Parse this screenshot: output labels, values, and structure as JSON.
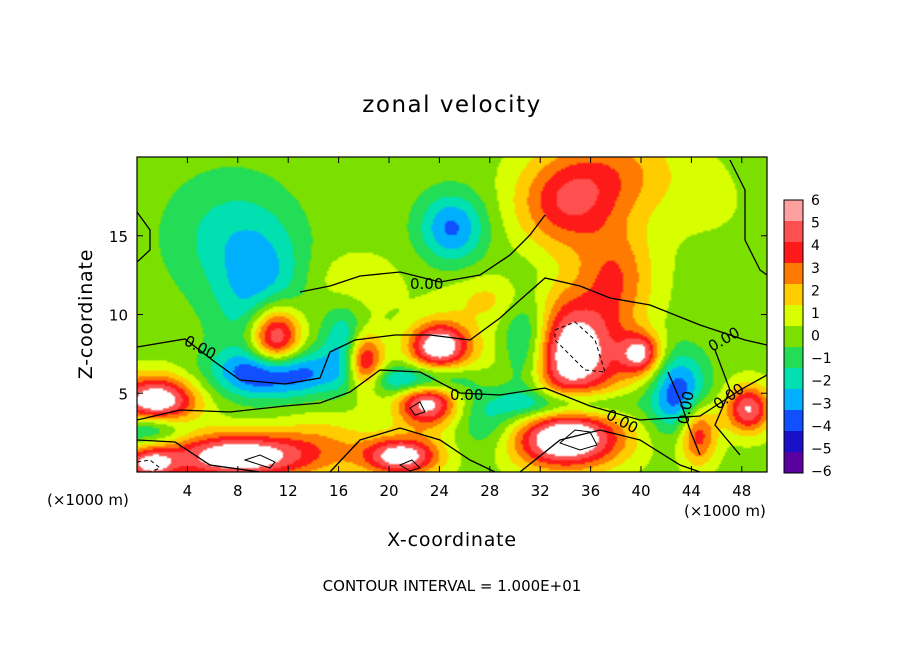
{
  "chart_data": {
    "type": "heatmap",
    "title": "zonal velocity",
    "xlabel": "X-coordinate",
    "ylabel": "Z-coordinate",
    "x_unit": "(×1000 m)",
    "x_unit_right": "(×1000 m)",
    "xlim": [
      0,
      50
    ],
    "ylim": [
      0,
      20
    ],
    "x_ticks": [
      "4",
      "8",
      "12",
      "16",
      "20",
      "24",
      "28",
      "32",
      "36",
      "40",
      "44",
      "48"
    ],
    "y_ticks": [
      "5",
      "10",
      "15"
    ],
    "colorbar_ticks": [
      "6",
      "5",
      "4",
      "3",
      "2",
      "1",
      "0",
      "−1",
      "−2",
      "−3",
      "−4",
      "−5",
      "−6"
    ],
    "colorbar_colors": [
      "#ffa0a0",
      "#ff5050",
      "#ff1a1a",
      "#ff7a00",
      "#ffcc00",
      "#d8ff00",
      "#7be000",
      "#22dd55",
      "#00e0b0",
      "#00b0ff",
      "#1050ff",
      "#1a10c8",
      "#5a00a0"
    ],
    "contour_labels": [
      "0.00",
      "0.00",
      "0.00",
      "0.00",
      "0.00",
      "0.00",
      "0.00",
      "0.00"
    ],
    "footer": "CONTOUR INTERVAL = 1.000E+01",
    "features": [
      {
        "x": 25,
        "z": 15.5,
        "v": -3.8,
        "r": 2.6,
        "rz": 2.2
      },
      {
        "x": 10,
        "z": 11,
        "v": -3.0,
        "r": 3.5,
        "rz": 4.5
      },
      {
        "x": 7,
        "z": 15,
        "v": -1.8,
        "r": 5,
        "rz": 4
      },
      {
        "x": 34,
        "z": 17,
        "v": 3.8,
        "r": 4,
        "rz": 3
      },
      {
        "x": 38,
        "z": 12.5,
        "v": 3,
        "r": 3,
        "rz": 3
      },
      {
        "x": 38,
        "z": 19,
        "v": 2.5,
        "r": 5,
        "rz": 3
      },
      {
        "x": 46,
        "z": 17,
        "v": 0.4,
        "r": 5,
        "rz": 4
      },
      {
        "x": 11,
        "z": 8.5,
        "v": 7.5,
        "r": 2.1,
        "rz": 2.2
      },
      {
        "x": 11,
        "z": 6.3,
        "v": -5.5,
        "r": 4.5,
        "rz": 1.5
      },
      {
        "x": 16.5,
        "z": 8,
        "v": -3,
        "r": 1.6,
        "rz": 2.5
      },
      {
        "x": 18,
        "z": 7,
        "v": 5.5,
        "r": 1.5,
        "rz": 1.8
      },
      {
        "x": 24,
        "z": 8,
        "v": 7,
        "r": 2.4,
        "rz": 1.5
      },
      {
        "x": 23,
        "z": 4.5,
        "v": 6.5,
        "r": 2.4,
        "rz": 1.6
      },
      {
        "x": 22.5,
        "z": 5.8,
        "v": -5,
        "r": 3.5,
        "rz": 1
      },
      {
        "x": 21,
        "z": 1,
        "v": 6.5,
        "r": 3,
        "rz": 1.2
      },
      {
        "x": 34,
        "z": 7.5,
        "v": 7.5,
        "r": 4.5,
        "rz": 3.5
      },
      {
        "x": 31,
        "z": 8,
        "v": -5.5,
        "r": 2.2,
        "rz": 3.5
      },
      {
        "x": 34,
        "z": 2,
        "v": 7,
        "r": 4.5,
        "rz": 1.8
      },
      {
        "x": 34,
        "z": 4.3,
        "v": -4,
        "r": 5,
        "rz": 1
      },
      {
        "x": 40,
        "z": 7.5,
        "v": 5,
        "r": 1.6,
        "rz": 1.3
      },
      {
        "x": 43,
        "z": 5,
        "v": -4.5,
        "r": 2.2,
        "rz": 2.5
      },
      {
        "x": 44.5,
        "z": 2.5,
        "v": 4.5,
        "r": 1.5,
        "rz": 2
      },
      {
        "x": 48.5,
        "z": 4,
        "v": 5.5,
        "r": 1.8,
        "rz": 1.5
      },
      {
        "x": 1.5,
        "z": 4.5,
        "v": 7,
        "r": 3.2,
        "rz": 1.6
      },
      {
        "x": 1,
        "z": 2.8,
        "v": -3.5,
        "r": 3,
        "rz": 1
      },
      {
        "x": 8,
        "z": 1,
        "v": 7,
        "r": 6,
        "rz": 1.5
      },
      {
        "x": 1,
        "z": 0.5,
        "v": 5,
        "r": 2,
        "rz": 1
      },
      {
        "x": 15,
        "z": 2,
        "v": 1.5,
        "r": 4,
        "rz": 2
      },
      {
        "x": 28,
        "z": 3,
        "v": -2,
        "r": 2.5,
        "rz": 2
      },
      {
        "x": 17,
        "z": 12,
        "v": 1.2,
        "r": 4,
        "rz": 2
      },
      {
        "x": 28,
        "z": 11,
        "v": 1.5,
        "r": 4,
        "rz": 1.5
      }
    ]
  }
}
